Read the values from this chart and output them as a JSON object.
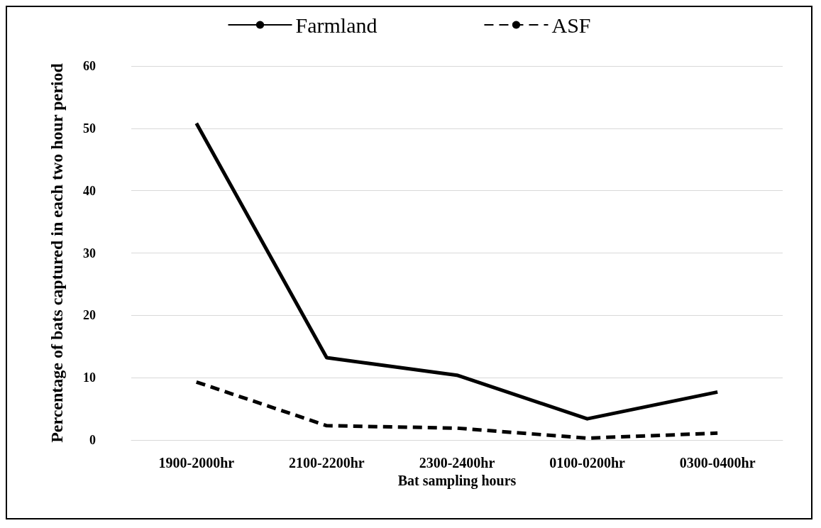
{
  "chart_data": {
    "type": "line",
    "xlabel": "Bat sampling hours",
    "ylabel": "Percentage of bats captured in each two hour period",
    "categories": [
      "1900-2000hr",
      "2100-2200hr",
      "2300-2400hr",
      "0100-0200hr",
      "0300-0400hr"
    ],
    "series": [
      {
        "name": "Farmland",
        "color": "#000000",
        "line_style": "solid",
        "values": [
          50.8,
          13.2,
          10.4,
          3.4,
          7.7
        ]
      },
      {
        "name": "ASF",
        "color": "#000000",
        "line_style": "dashed",
        "values": [
          9.3,
          2.3,
          1.9,
          0.3,
          1.1
        ]
      }
    ],
    "ylim": [
      0,
      60
    ],
    "yticks": [
      0,
      10,
      20,
      30,
      40,
      50,
      60
    ],
    "grid": "y",
    "legend": "top",
    "marker": "none"
  }
}
